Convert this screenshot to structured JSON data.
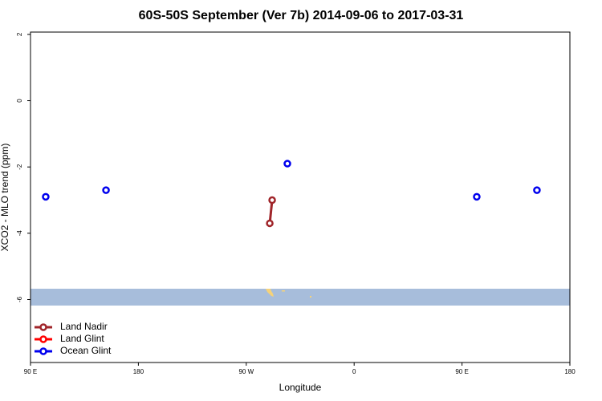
{
  "chart_data": {
    "type": "line",
    "title": "60S-50S September (Ver 7b)   2014-09-06 to 2017-03-31",
    "x_label": "Longitude",
    "y_label": "XCO2 - MLO trend (ppm)",
    "xlim": [
      90,
      540
    ],
    "xticks": [
      {
        "value": 90,
        "label": "90 E"
      },
      180,
      {
        "value": 270,
        "label": "90 W"
      },
      {
        "value": 360,
        "label": "0"
      },
      {
        "value": 450,
        "label": "90 E"
      },
      {
        "value": 540,
        "label": "180"
      }
    ],
    "ylim": [
      -7.9,
      2.07
    ],
    "yticks": [
      -6,
      -4,
      -2,
      0,
      2
    ],
    "legend": "bottom-left",
    "series": [
      {
        "name": "Land Nadir",
        "color": "#a0252a",
        "x": [
          289.6,
          291.6
        ],
        "values": [
          -3.7,
          -3.0
        ]
      },
      {
        "name": "Land Glint",
        "color": "#ff0000",
        "x": [],
        "values": []
      },
      {
        "name": "Ocean Glint",
        "color": "#0000ee",
        "x": [
          102.7,
          null,
          153,
          null,
          304.3,
          null,
          462.3,
          null,
          512.5
        ],
        "values": [
          -2.9,
          null,
          -2.7,
          null,
          -1.9,
          null,
          -2.9,
          null,
          -2.7
        ]
      }
    ]
  }
}
